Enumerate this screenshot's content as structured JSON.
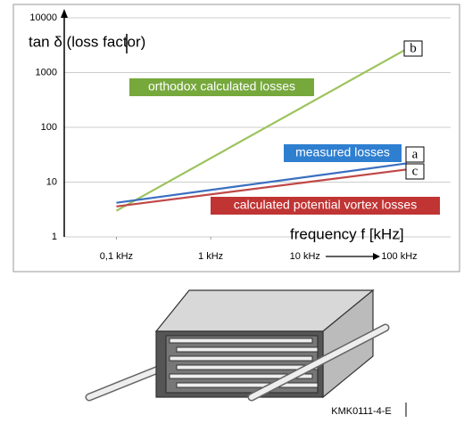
{
  "chart_data": {
    "type": "line",
    "y_label": "tan δ (loss factor)",
    "x_label": "frequency f [kHz]",
    "log_x": true,
    "log_y": true,
    "grid": true,
    "xlim": [
      0.028,
      350
    ],
    "ylim": [
      1,
      10000
    ],
    "yticks": [
      1,
      10,
      100,
      1000,
      10000
    ],
    "xticks": [
      {
        "value": 0.1,
        "label": "0,1 kHz"
      },
      {
        "value": 1,
        "label": "1 kHz"
      },
      {
        "value": 10,
        "label": "10 kHz"
      },
      {
        "value": 100,
        "label": "100 kHz"
      }
    ],
    "x": [
      0.1,
      120
    ],
    "series": [
      {
        "name": "orthodox calculated losses",
        "tag": "b",
        "color": "#9cc35c",
        "label_color": "#76a83c",
        "values": [
          3,
          2700
        ]
      },
      {
        "name": "measured losses",
        "tag": "a",
        "color": "#3a6fc0",
        "label_color": "#2f7fd0",
        "values": [
          4.2,
          22
        ]
      },
      {
        "name": "calculated potential vortex losses",
        "tag": "c",
        "color": "#c04848",
        "label_color": "#c03434",
        "values": [
          3.6,
          17
        ]
      }
    ]
  },
  "figure_label": "KMK0111-4-E"
}
